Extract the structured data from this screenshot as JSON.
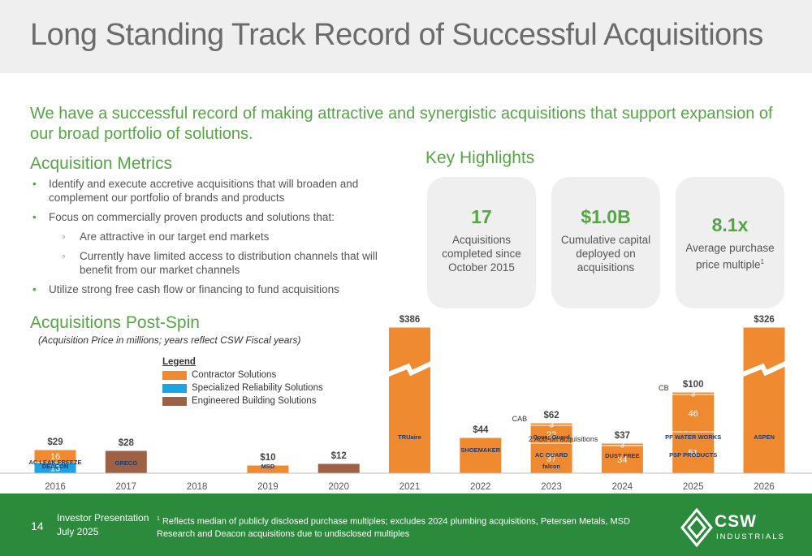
{
  "title": "Long Standing Track Record of Successful Acquisitions",
  "intro": "We have a successful record of making attractive and synergistic acquisitions that support expansion of our broad portfolio of solutions.",
  "metrics": {
    "heading": "Acquisition Metrics",
    "b1": "Identify and execute accretive acquisitions that will broaden and complement our portfolio of brands and products",
    "b2": "Focus on commercially proven products and solutions that:",
    "s1": "Are attractive in our target end markets",
    "s2": "Currently have limited access to distribution channels that will benefit from our market channels",
    "b3": "Utilize strong free cash flow or financing to fund acquisitions"
  },
  "highlights": {
    "heading": "Key Highlights",
    "cards": [
      {
        "value": "17",
        "desc": "Acquisitions completed since October 2015"
      },
      {
        "value": "$1.0B",
        "desc": "Cumulative capital deployed on acquisitions"
      },
      {
        "value": "8.1x",
        "desc": "Average purchase price multiple",
        "sup": "1"
      }
    ]
  },
  "postspin": {
    "heading": "Acquisitions Post-Spin",
    "note": "(Acquisition Price in millions; years reflect CSW Fiscal years)"
  },
  "legend": {
    "title": "Legend",
    "items": [
      {
        "label": "Contractor Solutions",
        "color": "#f08a30"
      },
      {
        "label": "Specialized Reliability Solutions",
        "color": "#1ba3e3"
      },
      {
        "label": "Engineered Building Solutions",
        "color": "#9c6243"
      }
    ]
  },
  "chart_data": {
    "type": "bar",
    "categories": [
      "2016",
      "2017",
      "2018",
      "2019",
      "2020",
      "2021",
      "2022",
      "2023",
      "2024",
      "2025",
      "2026"
    ],
    "totals": [
      "$29",
      "$28",
      "",
      "$10",
      "$12",
      "$386",
      "$44",
      "$62",
      "$37",
      "$100",
      "$326"
    ],
    "values": [
      29,
      28,
      0,
      10,
      12,
      386,
      44,
      62,
      37,
      100,
      326
    ],
    "segments": [
      [
        {
          "value": 13,
          "label": "13",
          "color": "#1ba3e3"
        },
        {
          "value": 16,
          "label": "16",
          "color": "#f08a30"
        }
      ],
      [
        {
          "value": 28,
          "label": "",
          "color": "#9c6243"
        }
      ],
      [],
      [
        {
          "value": 10,
          "label": "",
          "color": "#f08a30"
        }
      ],
      [
        {
          "value": 12,
          "label": "",
          "color": "#9c6243"
        }
      ],
      [
        {
          "value": 386,
          "label": "",
          "color": "#f08a30"
        }
      ],
      [
        {
          "value": 44,
          "label": "",
          "color": "#f08a30"
        }
      ],
      [
        {
          "value": 37,
          "label": "37",
          "color": "#f08a30"
        },
        {
          "value": 22,
          "label": "22",
          "color": "#f08a30"
        },
        {
          "value": 3,
          "label": "3",
          "color": "#f08a30"
        }
      ],
      [
        {
          "value": 34,
          "label": "34",
          "color": "#f08a30"
        },
        {
          "value": 3,
          "label": "3",
          "color": "#f08a30"
        }
      ],
      [
        {
          "value": 51,
          "label": "51",
          "color": "#f08a30"
        },
        {
          "value": 46,
          "label": "46",
          "color": "#f08a30"
        },
        {
          "value": 3,
          "label": "3",
          "color": "#f08a30"
        }
      ],
      [
        {
          "value": 326,
          "label": "",
          "color": "#f08a30"
        }
      ]
    ],
    "broken_axis_bars": [
      "2021",
      "2026"
    ],
    "annotations": [
      {
        "category": "2023",
        "text": "CAB"
      },
      {
        "category": "2024",
        "text": "2 Add-on acquisitions"
      },
      {
        "category": "2025",
        "text": "CB"
      }
    ],
    "brand_labels": {
      "2016": [
        "AC LEAK FREEZE",
        "DEACON"
      ],
      "2017": [
        "GRECO"
      ],
      "2019": [
        "MSD"
      ],
      "2021": [
        "TRUaire"
      ],
      "2022": [
        "SHOEMAKER"
      ],
      "2023": [
        "Cover Guard",
        "AC GUARD",
        "falcon"
      ],
      "2024": [
        "DUST FREE"
      ],
      "2025": [
        "PF WATER WORKS",
        "PSP PRODUCTS"
      ],
      "2026": [
        "ASPEN"
      ]
    }
  },
  "footer": {
    "page": "14",
    "line1": "Investor Presentation",
    "line2": "July 2025",
    "footnote": "Reflects median of publicly disclosed purchase multiples; excludes 2024 plumbing acquisitions, Petersen Metals, MSD Research and Deacon acquisitions due to undisclosed multiples",
    "footnote_mark": "1",
    "logo_text": "CSW",
    "logo_sub": "INDUSTRIALS"
  }
}
